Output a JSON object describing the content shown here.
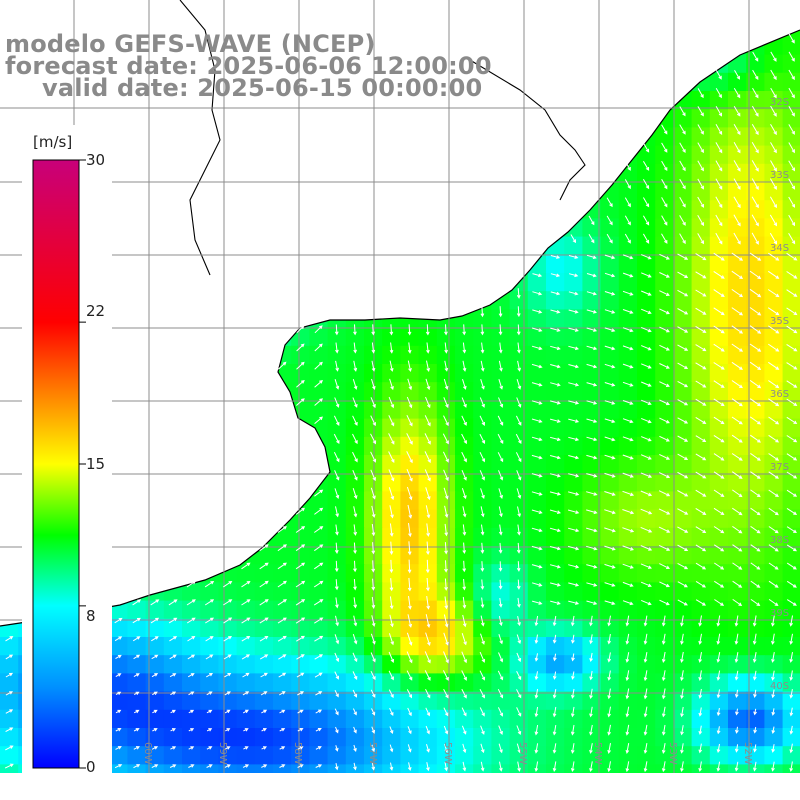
{
  "title": {
    "model": "modelo GEFS-WAVE (NCEP)",
    "forecast": "forecast date: 2025-06-06 12:00:00",
    "valid": "valid date: 2025-06-15 00:00:00"
  },
  "colorbar": {
    "unit": "[m/s]",
    "ticks": [
      "30",
      "22",
      "15",
      "8",
      "0"
    ],
    "tick_values": [
      30,
      22,
      15,
      8,
      0
    ],
    "range": [
      0,
      30
    ],
    "colors": [
      "#0000ff",
      "#0090ff",
      "#00ffff",
      "#00ff00",
      "#ffff00",
      "#ff8000",
      "#ff0000",
      "#c8007a"
    ]
  },
  "map": {
    "variable": "wind speed and direction",
    "lat_labels": [
      "32S",
      "33S",
      "34S",
      "35S",
      "36S",
      "37S",
      "38S",
      "39S",
      "40S"
    ],
    "lon_labels": [
      "61W",
      "60W",
      "59W",
      "58W",
      "57W",
      "56W",
      "55W",
      "54W",
      "53W",
      "52W"
    ],
    "lat_range": [
      -41,
      -31
    ],
    "lon_range": [
      -61,
      -52
    ],
    "land_color": "#ffffff",
    "coast_color": "#000000",
    "grid_color": "#8c8c8c",
    "arrow_color": "#ffffff"
  }
}
